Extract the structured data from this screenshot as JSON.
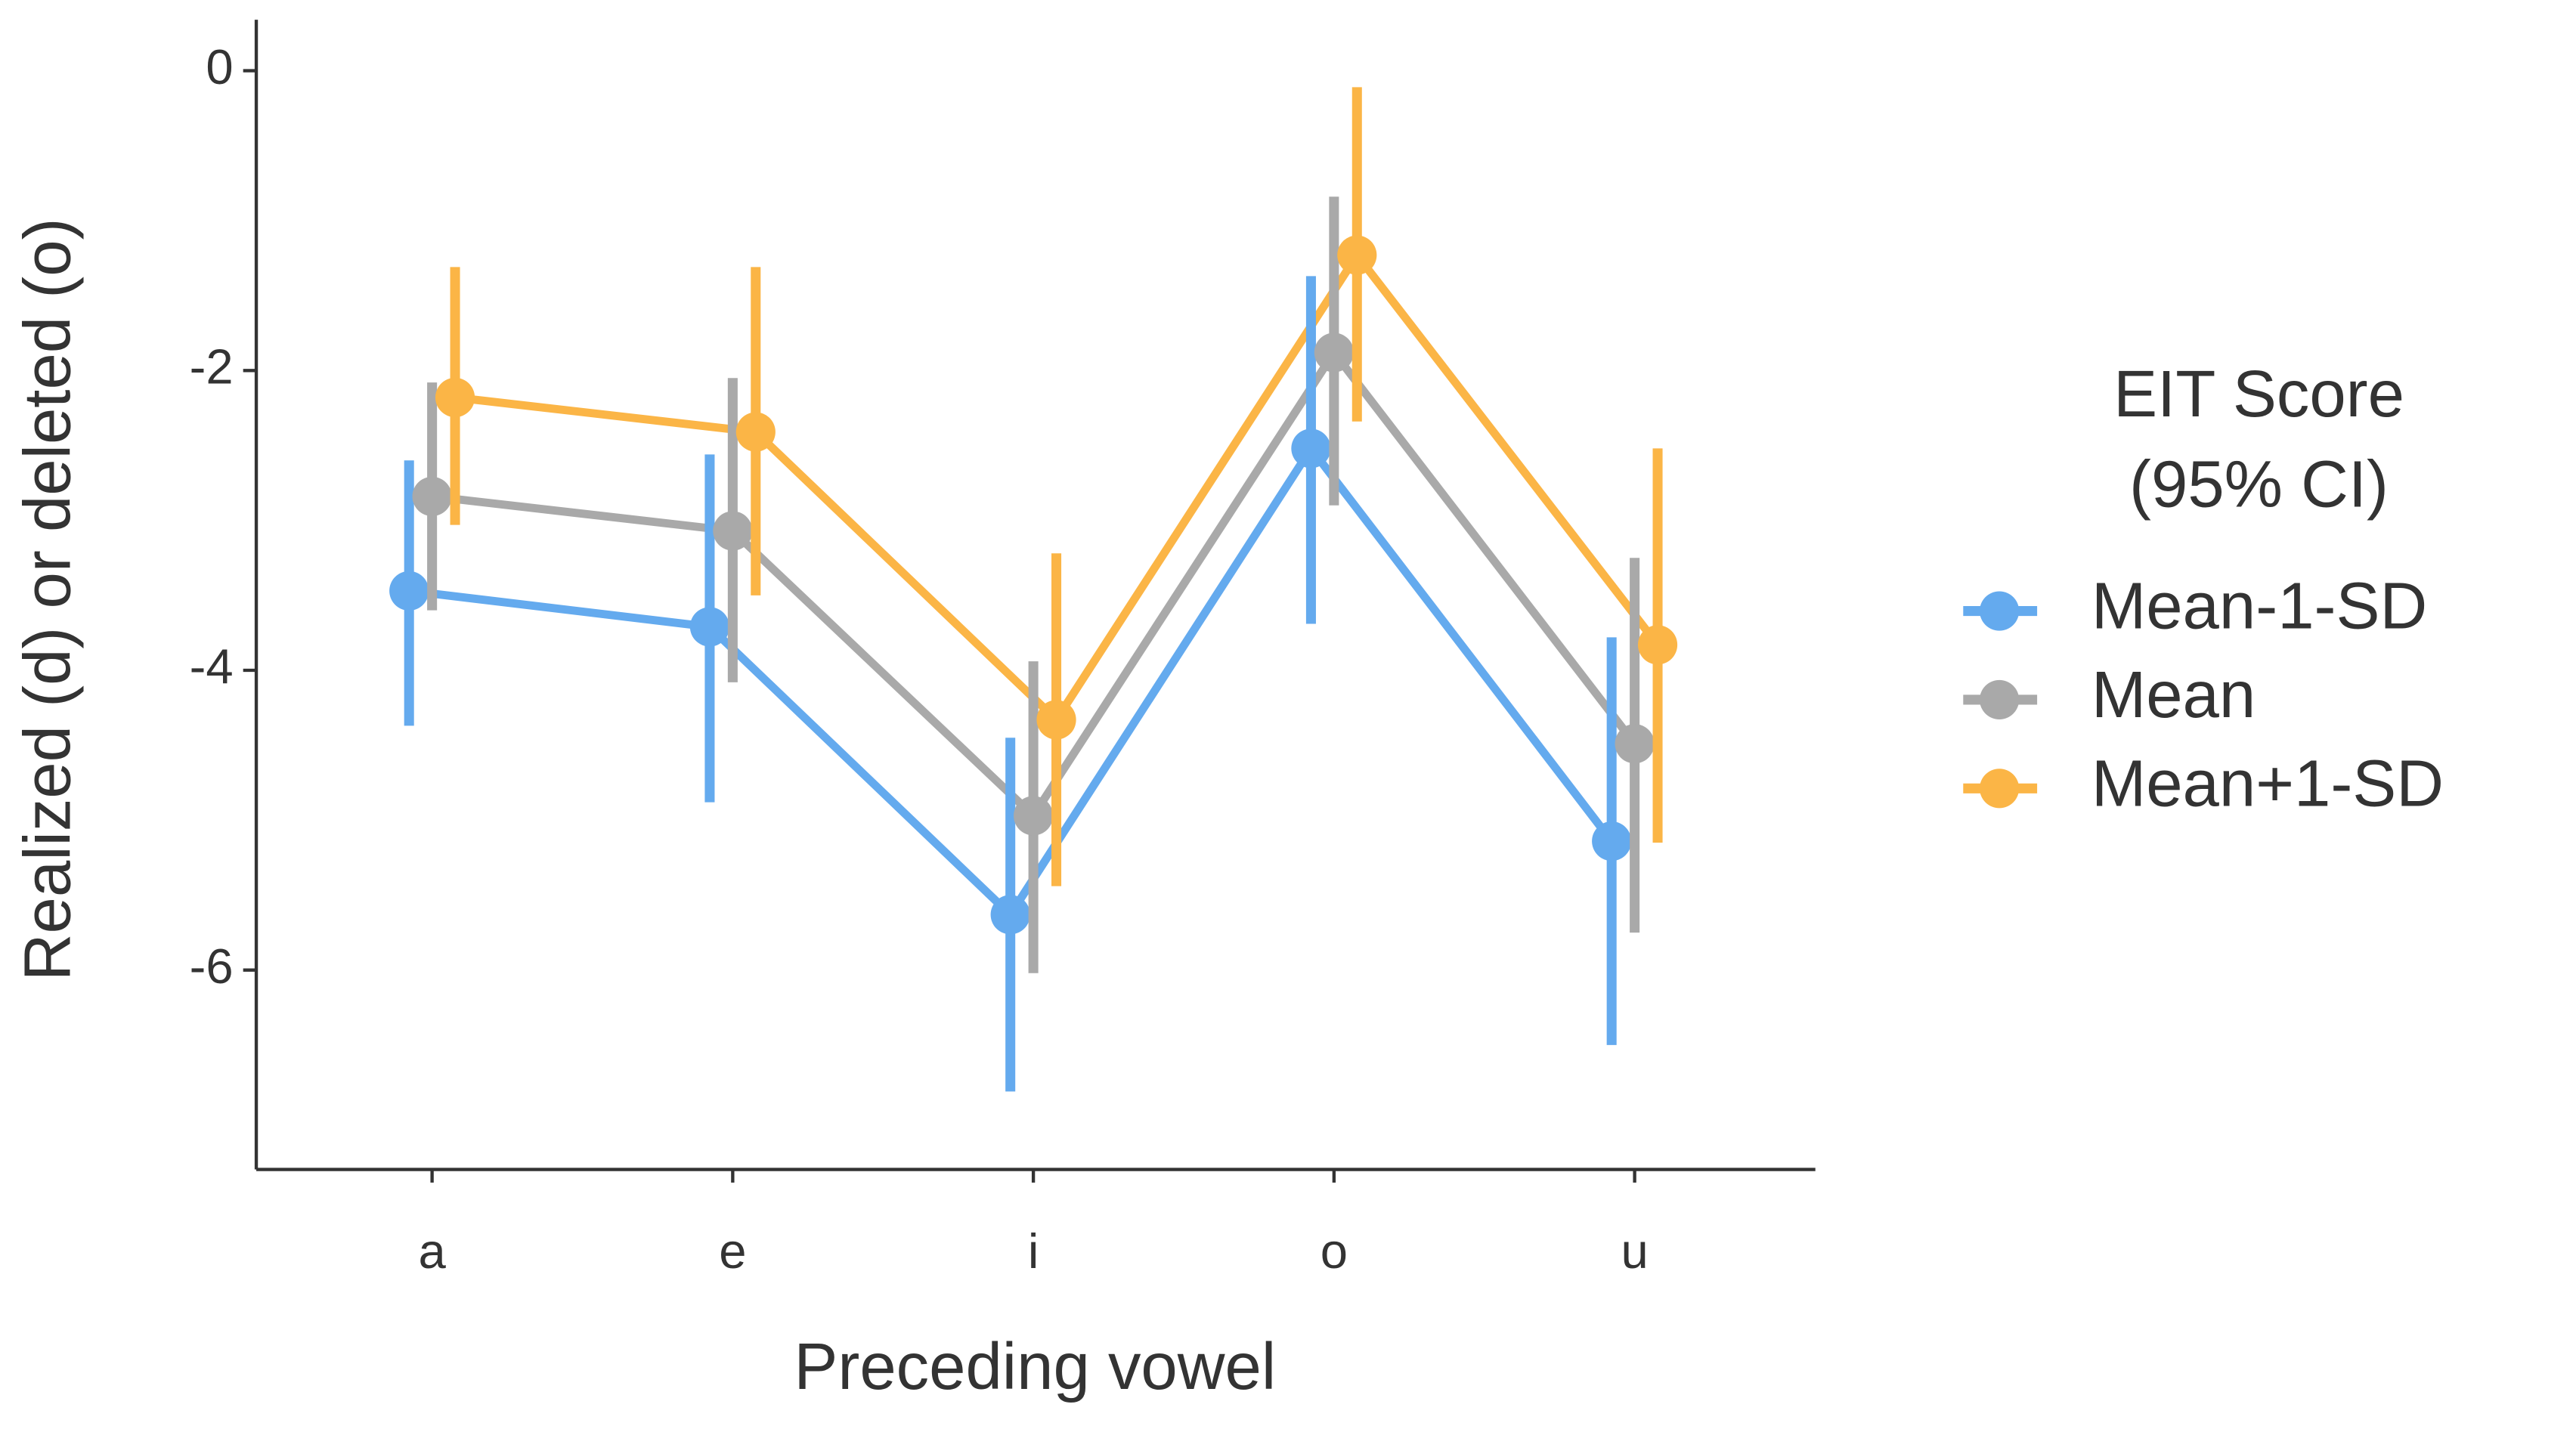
{
  "chart_data": {
    "type": "dodged_pointrange",
    "x_label": "Preceding vowel",
    "y_label": "Realized (d) or deleted (o)",
    "legend_title": [
      "EIT Score",
      "(95% CI)"
    ],
    "categories": [
      "a",
      "e",
      "i",
      "o",
      "u"
    ],
    "ylim": [
      -7.33,
      0.34
    ],
    "yticks": [
      0,
      -2,
      -4,
      -6
    ],
    "legend_position": "right",
    "series": [
      {
        "name": "Mean-1-SD",
        "color": "#64aaee",
        "values": [
          -3.47,
          -3.71,
          -5.63,
          -2.52,
          -5.14
        ],
        "lower": [
          -4.37,
          -4.88,
          -6.81,
          -3.69,
          -6.5
        ],
        "upper": [
          -2.6,
          -2.56,
          -4.45,
          -1.37,
          -3.78
        ]
      },
      {
        "name": "Mean",
        "color": "#a9a9a9",
        "values": [
          -2.84,
          -3.07,
          -4.97,
          -1.88,
          -4.49
        ],
        "lower": [
          -3.6,
          -4.08,
          -6.02,
          -2.9,
          -5.75
        ],
        "upper": [
          -2.08,
          -2.05,
          -3.94,
          -0.84,
          -3.25
        ]
      },
      {
        "name": "Mean+1-SD",
        "color": "#fbb546",
        "values": [
          -2.18,
          -2.41,
          -4.33,
          -1.23,
          -3.83
        ],
        "lower": [
          -3.03,
          -3.5,
          -5.44,
          -2.34,
          -5.15
        ],
        "upper": [
          -1.31,
          -1.31,
          -3.22,
          -0.11,
          -2.52
        ]
      }
    ]
  }
}
